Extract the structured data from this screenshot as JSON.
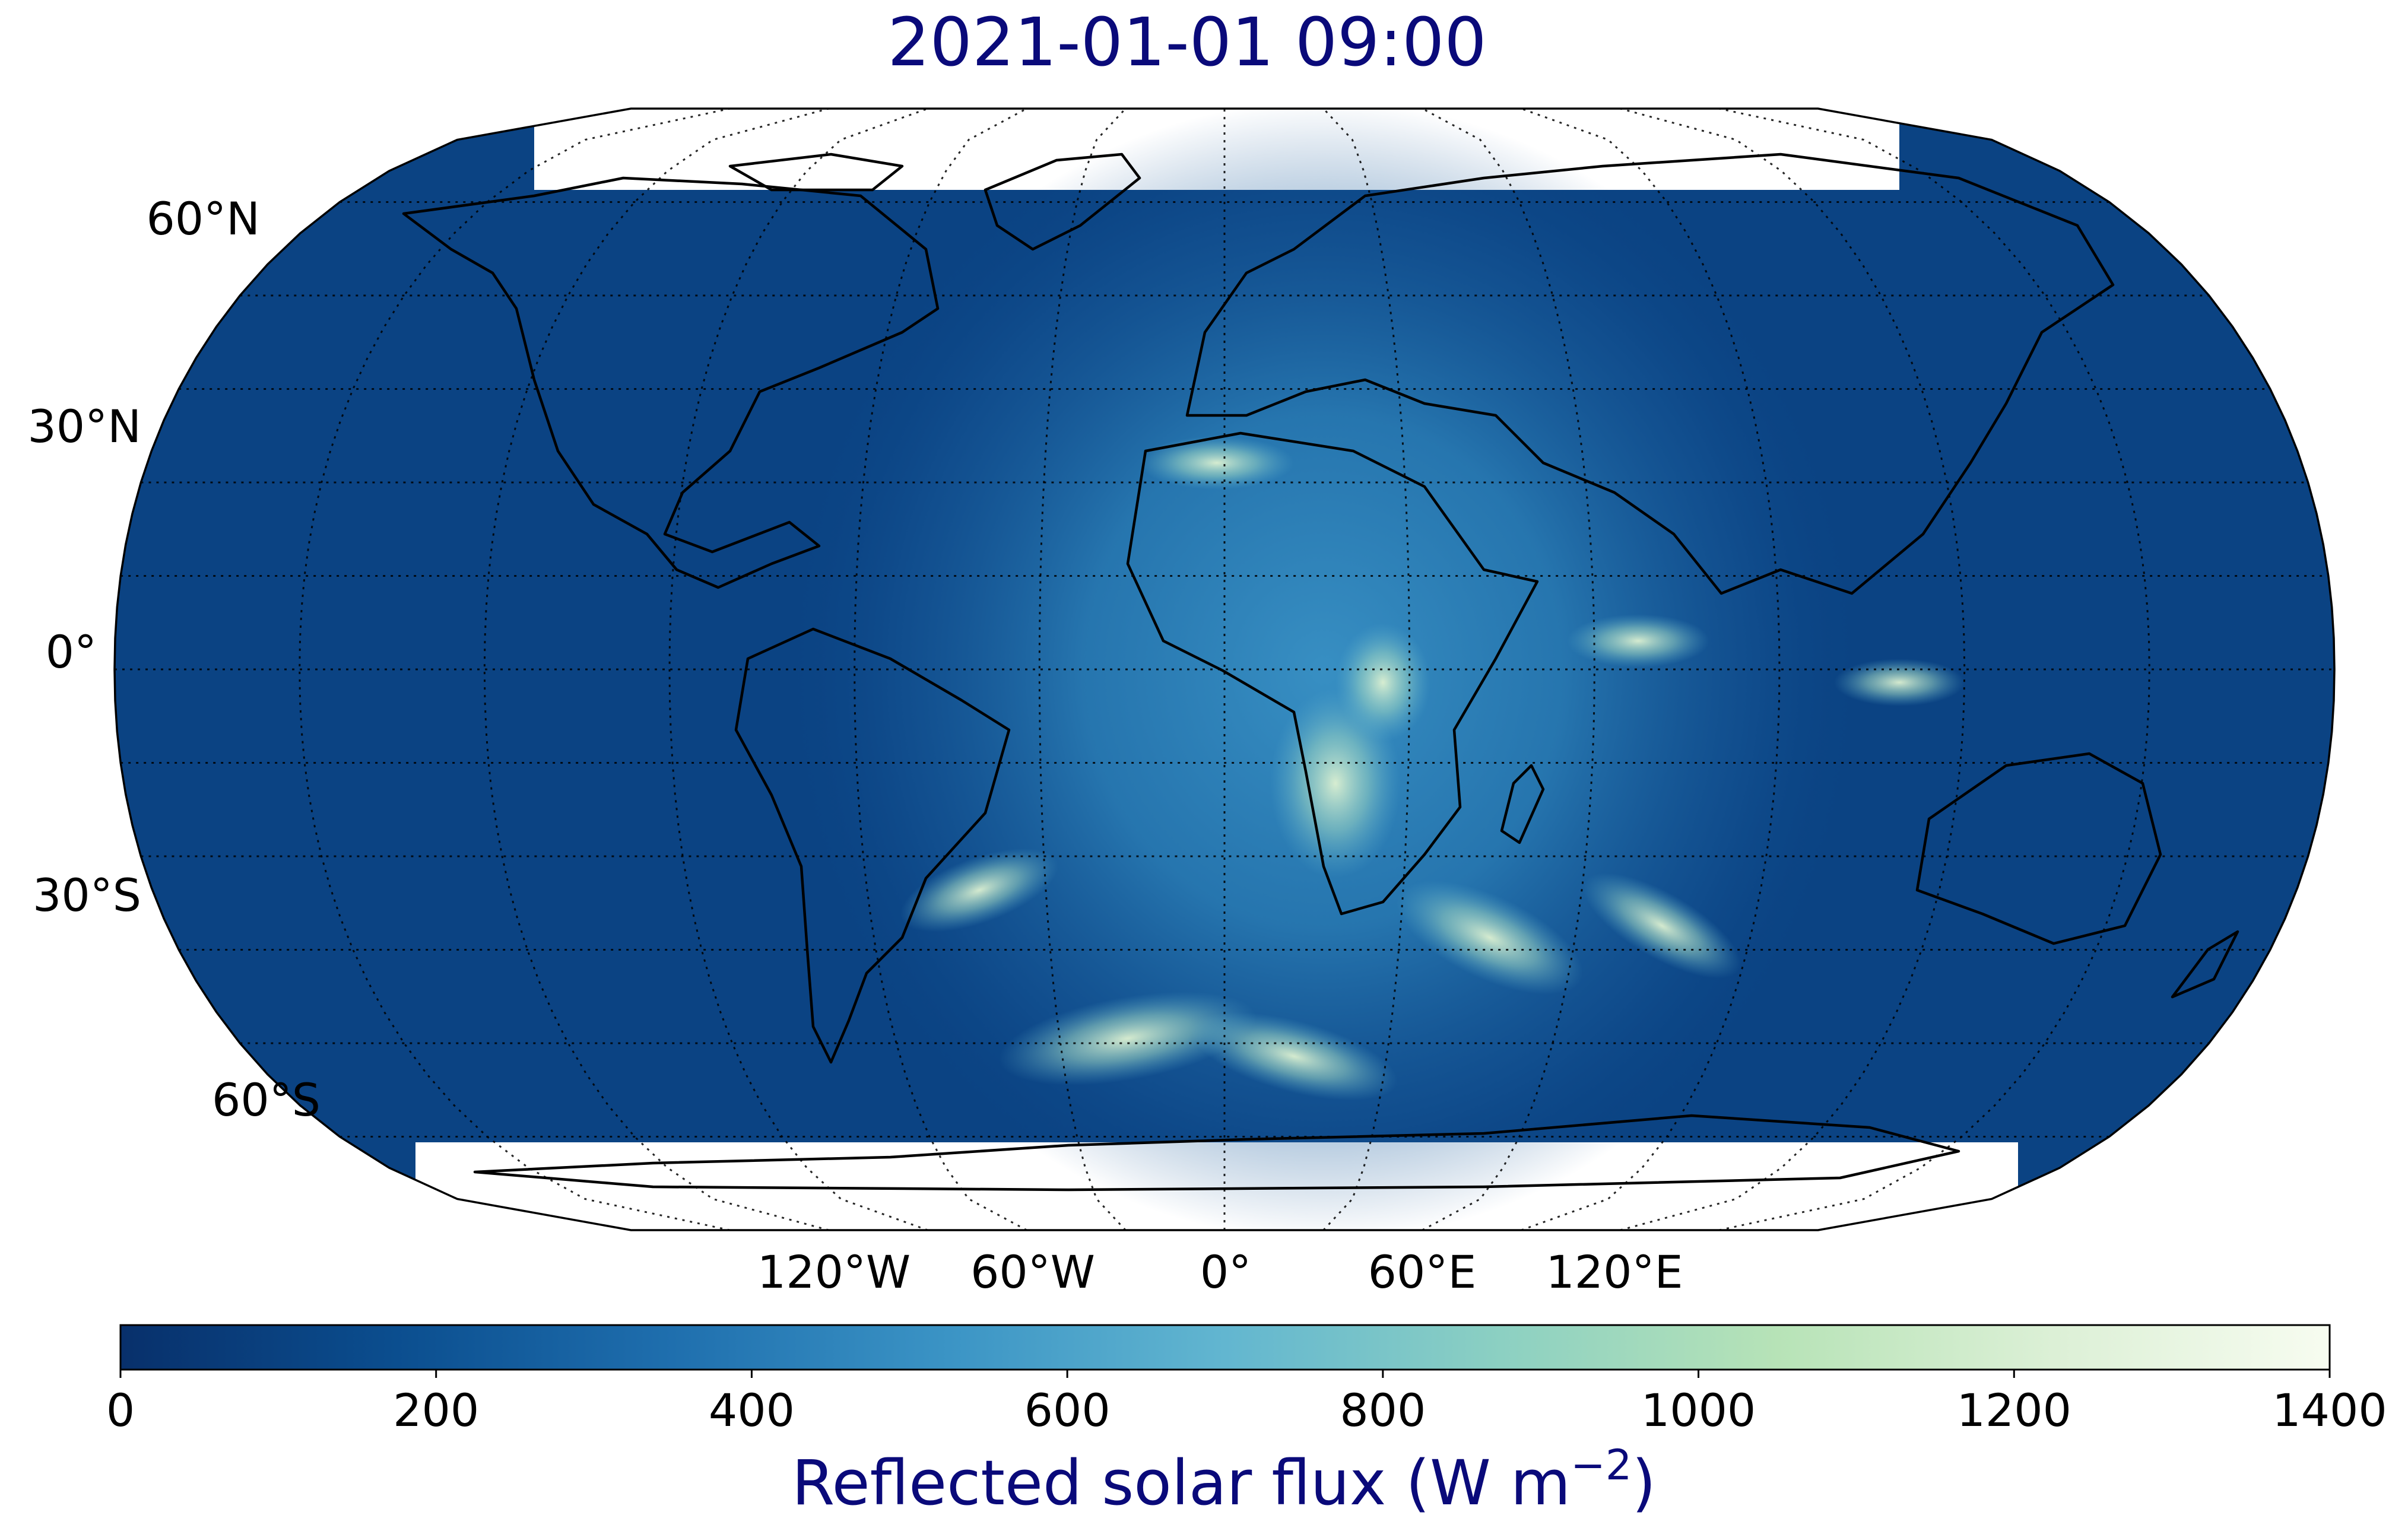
{
  "title": "2021-01-01 09:00",
  "map": {
    "projection": "Robinson",
    "field": "Reflected solar flux",
    "colormap": "GnBu_r",
    "lat_labels": [
      "60°N",
      "30°N",
      "0°",
      "30°S",
      "60°S"
    ],
    "lon_labels": [
      "120°W",
      "60°W",
      "0°",
      "60°E",
      "120°E"
    ]
  },
  "colorbar": {
    "min": 0,
    "max": 1400,
    "ticks": [
      "0",
      "200",
      "400",
      "600",
      "800",
      "1000",
      "1200",
      "1400"
    ],
    "label_main": "Reflected solar flux (W m",
    "label_sup": "−2",
    "label_end": ")",
    "colors": [
      "#08306b",
      "#0b4e8f",
      "#1f6fae",
      "#3b94c5",
      "#62b6d0",
      "#8cd0c2",
      "#b7e3b7",
      "#dcf0d6",
      "#f7fcf0"
    ]
  }
}
